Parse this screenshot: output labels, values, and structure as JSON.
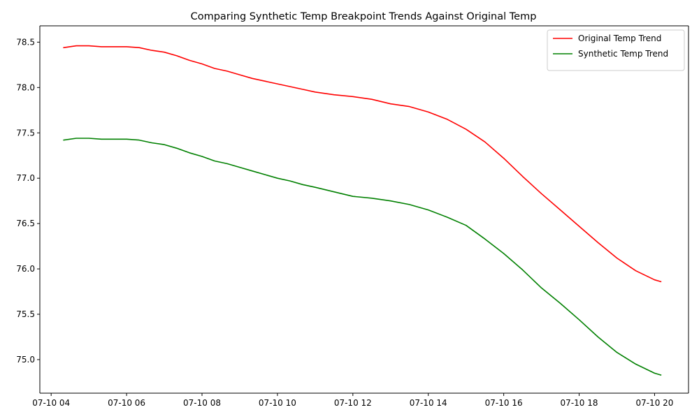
{
  "chart_data": {
    "type": "line",
    "title": "Comparing Synthetic Temp Breakpoint Trends Against Original Temp",
    "xlabel": "",
    "ylabel": "",
    "xlim": [
      "07-10 03:42",
      "07-10 20:54"
    ],
    "ylim": [
      74.63,
      78.68
    ],
    "xticks": [
      "07-10 04",
      "07-10 06",
      "07-10 08",
      "07-10 10",
      "07-10 12",
      "07-10 14",
      "07-10 16",
      "07-10 18",
      "07-10 20"
    ],
    "yticks": [
      "75.0",
      "75.5",
      "76.0",
      "76.5",
      "77.0",
      "77.5",
      "78.0",
      "78.5"
    ],
    "grid": false,
    "legend_position": "top-right",
    "series": [
      {
        "name": "Original Temp Trend",
        "color": "#ff0000",
        "x": [
          "07-10 04:20",
          "07-10 04:40",
          "07-10 05:00",
          "07-10 05:20",
          "07-10 05:40",
          "07-10 06:00",
          "07-10 06:20",
          "07-10 06:40",
          "07-10 07:00",
          "07-10 07:20",
          "07-10 07:40",
          "07-10 08:00",
          "07-10 08:20",
          "07-10 08:40",
          "07-10 09:00",
          "07-10 09:20",
          "07-10 09:40",
          "07-10 10:00",
          "07-10 10:20",
          "07-10 10:40",
          "07-10 11:00",
          "07-10 11:30",
          "07-10 12:00",
          "07-10 12:30",
          "07-10 13:00",
          "07-10 13:30",
          "07-10 14:00",
          "07-10 14:30",
          "07-10 15:00",
          "07-10 15:30",
          "07-10 16:00",
          "07-10 16:30",
          "07-10 17:00",
          "07-10 17:30",
          "07-10 18:00",
          "07-10 18:30",
          "07-10 19:00",
          "07-10 19:30",
          "07-10 20:00",
          "07-10 20:10"
        ],
        "y": [
          78.44,
          78.46,
          78.46,
          78.45,
          78.45,
          78.45,
          78.44,
          78.41,
          78.39,
          78.35,
          78.3,
          78.26,
          78.21,
          78.18,
          78.14,
          78.1,
          78.07,
          78.04,
          78.01,
          77.98,
          77.95,
          77.92,
          77.9,
          77.87,
          77.82,
          77.79,
          77.73,
          77.65,
          77.54,
          77.4,
          77.22,
          77.02,
          76.83,
          76.65,
          76.47,
          76.29,
          76.12,
          75.98,
          75.88,
          75.86
        ]
      },
      {
        "name": "Synthetic Temp Trend",
        "color": "#008000",
        "x": [
          "07-10 04:20",
          "07-10 04:40",
          "07-10 05:00",
          "07-10 05:20",
          "07-10 05:40",
          "07-10 06:00",
          "07-10 06:20",
          "07-10 06:40",
          "07-10 07:00",
          "07-10 07:20",
          "07-10 07:40",
          "07-10 08:00",
          "07-10 08:20",
          "07-10 08:40",
          "07-10 09:00",
          "07-10 09:20",
          "07-10 09:40",
          "07-10 10:00",
          "07-10 10:20",
          "07-10 10:40",
          "07-10 11:00",
          "07-10 11:30",
          "07-10 12:00",
          "07-10 12:30",
          "07-10 13:00",
          "07-10 13:30",
          "07-10 14:00",
          "07-10 14:30",
          "07-10 15:00",
          "07-10 15:30",
          "07-10 16:00",
          "07-10 16:30",
          "07-10 17:00",
          "07-10 17:30",
          "07-10 18:00",
          "07-10 18:30",
          "07-10 19:00",
          "07-10 19:30",
          "07-10 20:00",
          "07-10 20:10"
        ],
        "y": [
          77.42,
          77.44,
          77.44,
          77.43,
          77.43,
          77.43,
          77.42,
          77.39,
          77.37,
          77.33,
          77.28,
          77.24,
          77.19,
          77.16,
          77.12,
          77.08,
          77.04,
          77.0,
          76.97,
          76.93,
          76.9,
          76.85,
          76.8,
          76.78,
          76.75,
          76.71,
          76.65,
          76.57,
          76.48,
          76.33,
          76.17,
          75.99,
          75.79,
          75.62,
          75.44,
          75.25,
          75.08,
          74.95,
          74.85,
          74.83
        ]
      }
    ]
  }
}
